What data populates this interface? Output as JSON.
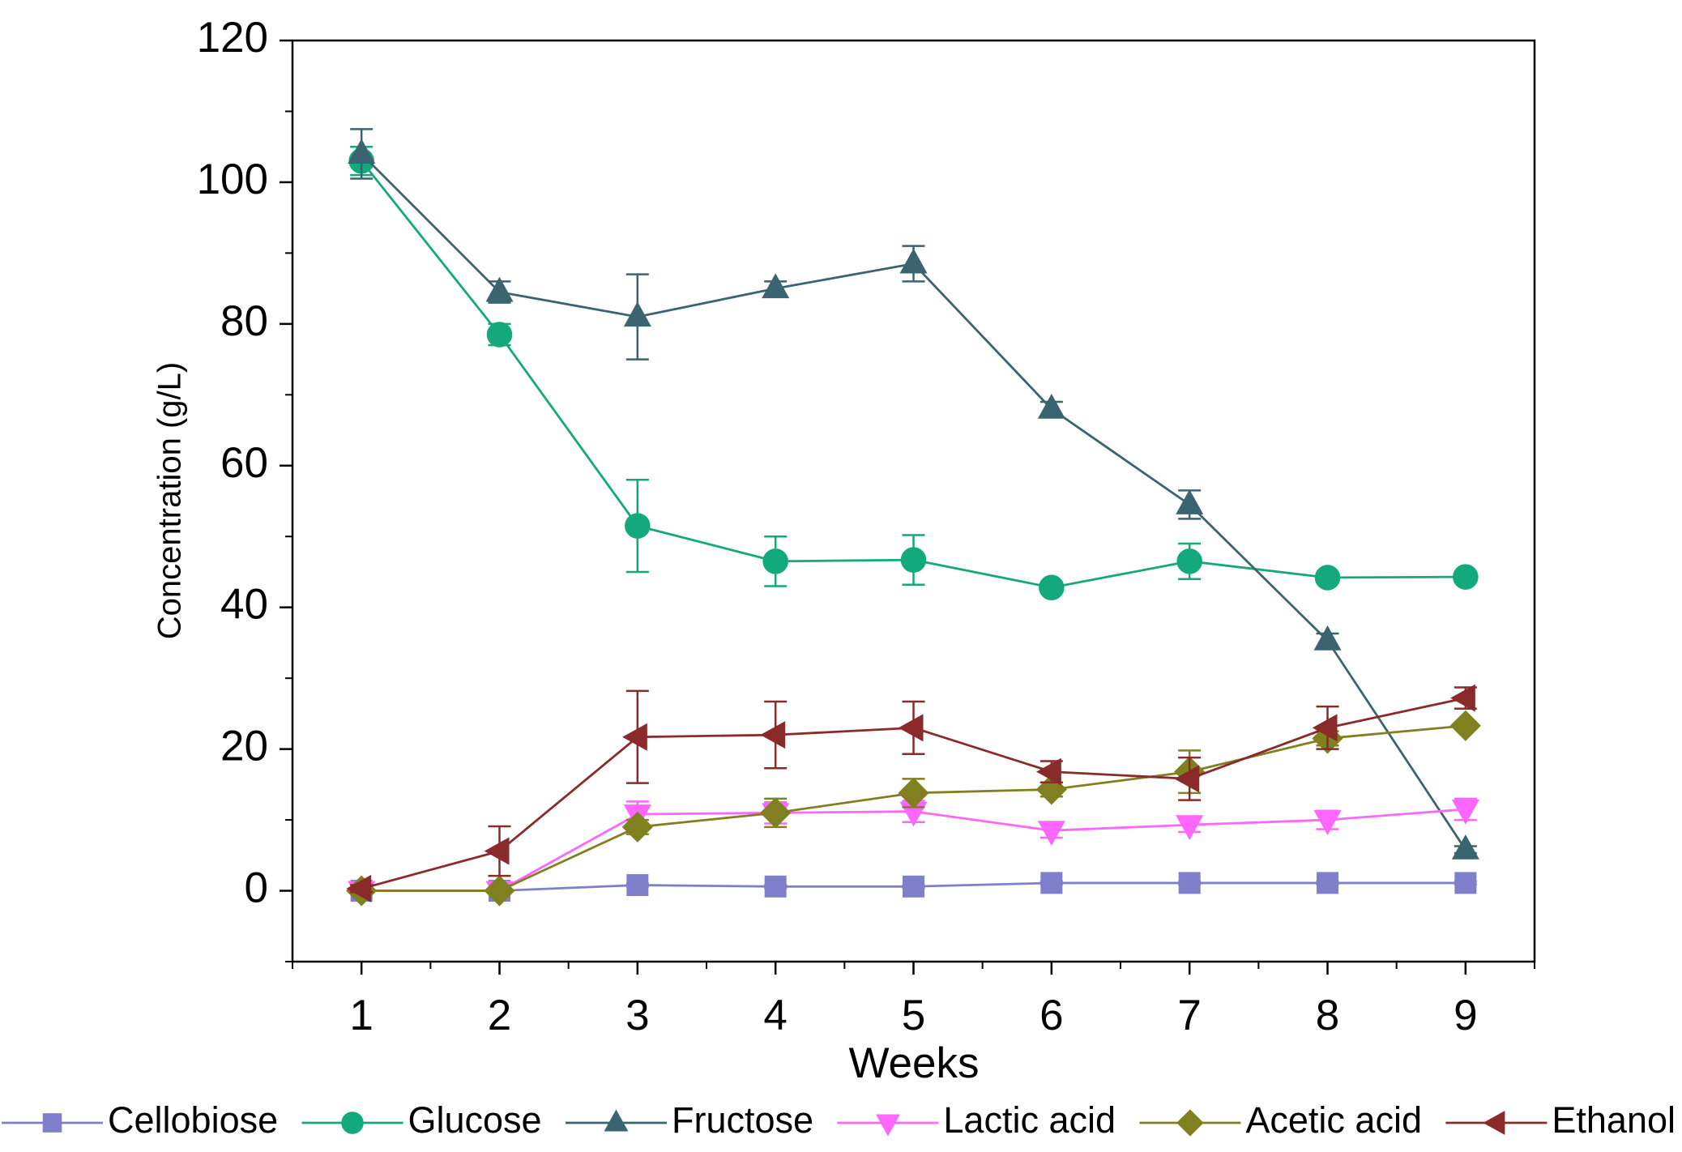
{
  "chart_data": {
    "type": "line",
    "x_label": "Weeks",
    "y_label": "Concentration (g/L)",
    "x": [
      1,
      2,
      3,
      4,
      5,
      6,
      7,
      8,
      9
    ],
    "xlim": [
      0.5,
      9.5
    ],
    "xticks": [
      1,
      2,
      3,
      4,
      5,
      6,
      7,
      8,
      9
    ],
    "ylim": [
      -10,
      120
    ],
    "yticks": [
      0,
      20,
      40,
      60,
      80,
      100,
      120
    ],
    "grid": false,
    "legend": "bottom",
    "series": [
      {
        "name": "Cellobiose",
        "color": "#7f7fcc",
        "marker": "square",
        "values": [
          0,
          0,
          0.8,
          0.6,
          0.6,
          1.1,
          1.1,
          1.1,
          1.1
        ],
        "errors": [
          0.2,
          0.2,
          0.2,
          0.2,
          0.2,
          0.2,
          0.2,
          0.2,
          0.2
        ]
      },
      {
        "name": "Glucose",
        "color": "#14a97c",
        "marker": "circle",
        "values": [
          103,
          78.5,
          51.5,
          46.5,
          46.7,
          42.8,
          46.5,
          44.2,
          44.3
        ],
        "errors": [
          2,
          1.5,
          6.5,
          3.5,
          3.5,
          0.5,
          2.5,
          0.5,
          0.5
        ]
      },
      {
        "name": "Fructose",
        "color": "#3a6470",
        "marker": "triangle-up",
        "values": [
          104,
          84.5,
          81,
          85,
          88.5,
          68,
          54.5,
          35.3,
          5.8
        ],
        "errors": [
          3.5,
          1.5,
          6,
          1,
          2.5,
          1,
          2,
          1,
          0.5
        ]
      },
      {
        "name": "Lactic acid",
        "color": "#ff66ff",
        "marker": "triangle-down",
        "values": [
          0,
          0,
          10.8,
          11,
          11.2,
          8.5,
          9.3,
          10,
          11.5
        ],
        "errors": [
          0.3,
          0.3,
          1.8,
          1.5,
          1.5,
          1,
          1,
          1.3,
          1.5
        ]
      },
      {
        "name": "Acetic acid",
        "color": "#808020",
        "marker": "diamond",
        "values": [
          0,
          0,
          9,
          11,
          13.8,
          14.3,
          16.8,
          21.5,
          23.3
        ],
        "errors": [
          0.2,
          0.2,
          1,
          2,
          2,
          1,
          3,
          1,
          0.5
        ]
      },
      {
        "name": "Ethanol",
        "color": "#8b2a2a",
        "marker": "triangle-left",
        "values": [
          0.3,
          5.6,
          21.7,
          22,
          23,
          16.8,
          15.8,
          23,
          27.2
        ],
        "errors": [
          0.5,
          3.5,
          6.5,
          4.7,
          3.7,
          1.5,
          3,
          3,
          1.5
        ]
      }
    ]
  }
}
